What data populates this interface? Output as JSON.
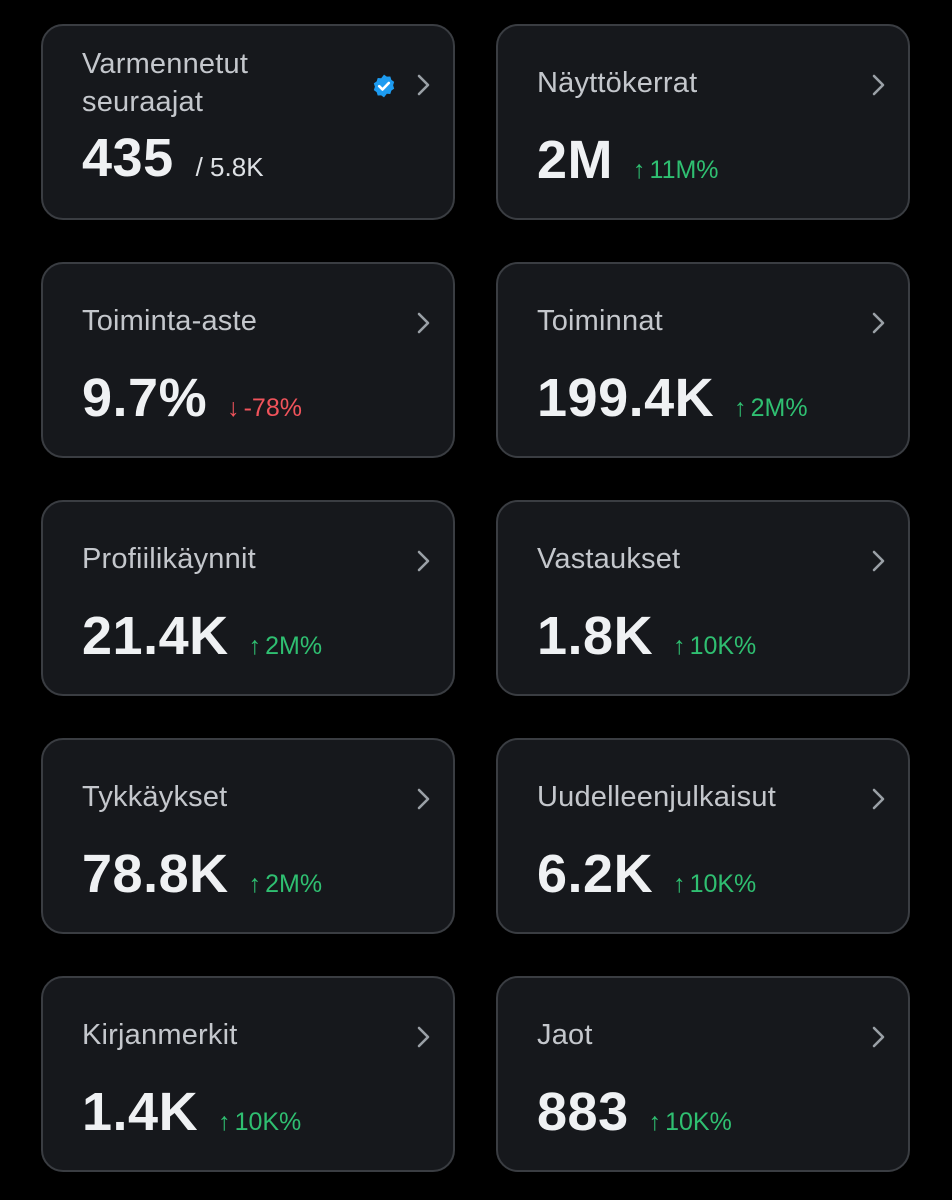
{
  "colors": {
    "background": "#000000",
    "card": "#16181c",
    "border": "#3a3d42",
    "up": "#2fbf71",
    "down": "#f0535b",
    "verified": "#1d9bf0"
  },
  "cards": [
    {
      "title": "Varmennetut seuraajat",
      "value": "435",
      "sub": "/ 5.8K",
      "icon": "verified-badge-icon"
    },
    {
      "title": "Näyttökerrat",
      "value": "2M",
      "change": "11M%",
      "direction": "up",
      "arrow": "↑"
    },
    {
      "title": "Toiminta-aste",
      "value": "9.7%",
      "change": "-78%",
      "direction": "down",
      "arrow": "↓"
    },
    {
      "title": "Toiminnat",
      "value": "199.4K",
      "change": "2M%",
      "direction": "up",
      "arrow": "↑"
    },
    {
      "title": "Profiilikäynnit",
      "value": "21.4K",
      "change": "2M%",
      "direction": "up",
      "arrow": "↑"
    },
    {
      "title": "Vastaukset",
      "value": "1.8K",
      "change": "10K%",
      "direction": "up",
      "arrow": "↑"
    },
    {
      "title": "Tykkäykset",
      "value": "78.8K",
      "change": "2M%",
      "direction": "up",
      "arrow": "↑"
    },
    {
      "title": "Uudelleenjulkaisut",
      "value": "6.2K",
      "change": "10K%",
      "direction": "up",
      "arrow": "↑"
    },
    {
      "title": "Kirjanmerkit",
      "value": "1.4K",
      "change": "10K%",
      "direction": "up",
      "arrow": "↑"
    },
    {
      "title": "Jaot",
      "value": "883",
      "change": "10K%",
      "direction": "up",
      "arrow": "↑"
    }
  ]
}
